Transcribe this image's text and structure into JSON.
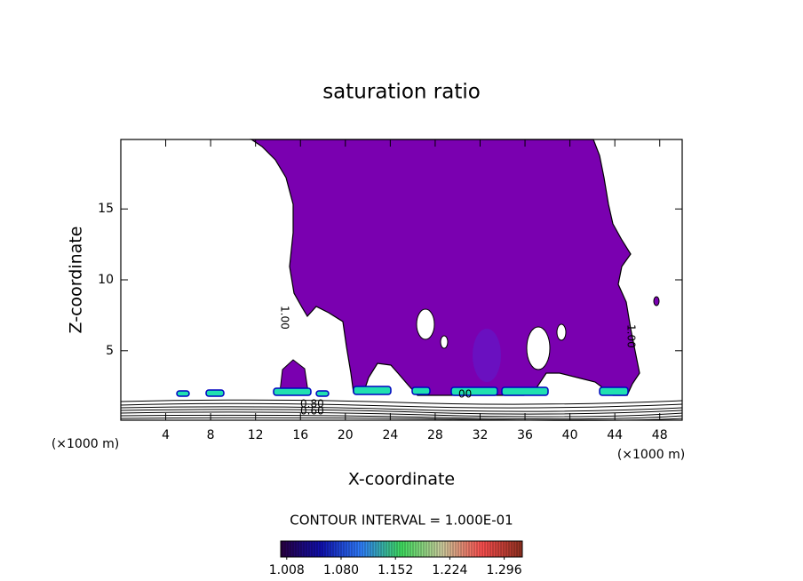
{
  "chart_data": {
    "type": "contour",
    "title": "saturation ratio",
    "x_label": "X-coordinate",
    "y_label": "Z-coordinate",
    "x_unit": "(×1000 m)",
    "y_unit": "(×1000 m)",
    "xlim": [
      0,
      50
    ],
    "ylim": [
      0.1,
      19.9
    ],
    "xticks": [
      4,
      8,
      12,
      16,
      20,
      24,
      28,
      32,
      36,
      40,
      44,
      48
    ],
    "yticks": [
      5,
      10,
      15
    ],
    "contour_interval": "CONTOUR INTERVAL = 1.000E-01",
    "colorbar": {
      "lim": [
        1.0,
        1.32
      ],
      "ticks": [
        1.008,
        {
          "value": 1.08,
          "label": "1.080"
        },
        1.152,
        1.224,
        1.296
      ],
      "colors": [
        "#2a0040",
        "#1010b0",
        "#3080ff",
        "#40e060",
        "#d0d0a0",
        "#ff5050",
        "#903020"
      ]
    },
    "contour_labels": [
      "1.00",
      "0.80",
      "0.60",
      "1.00",
      "00"
    ]
  }
}
